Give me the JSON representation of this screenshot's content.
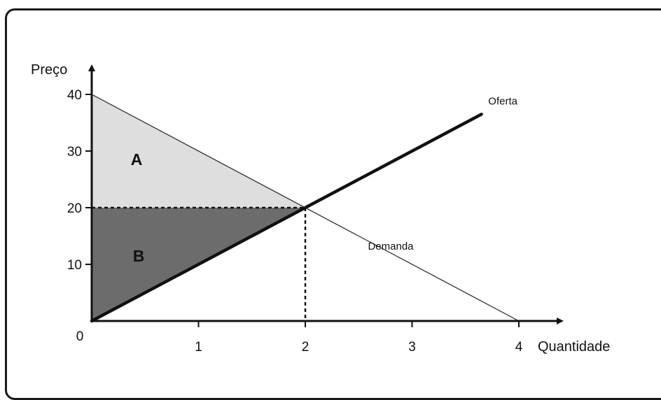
{
  "chart_data": {
    "type": "line",
    "xlabel": "Quantidade",
    "ylabel": "Preço",
    "xlim": [
      0,
      4.3
    ],
    "ylim": [
      0,
      44
    ],
    "x_ticks": [
      "0",
      "1",
      "2",
      "3",
      "4"
    ],
    "y_ticks": [
      "10",
      "20",
      "30",
      "40"
    ],
    "series": [
      {
        "name": "Oferta",
        "x": [
          0,
          3.65
        ],
        "y": [
          0,
          36.5
        ],
        "style": "thick",
        "color": "#111111"
      },
      {
        "name": "Demanda",
        "x": [
          0,
          4
        ],
        "y": [
          40,
          0
        ],
        "style": "thin",
        "color": "#222222"
      }
    ],
    "equilibrium": {
      "x": 2,
      "y": 20
    },
    "areas": [
      {
        "label": "A",
        "points": [
          [
            0,
            40
          ],
          [
            0,
            20
          ],
          [
            2,
            20
          ]
        ],
        "fill": "#dedede",
        "label_at": [
          0.42,
          28.5
        ],
        "label_color": "#111111"
      },
      {
        "label": "B",
        "points": [
          [
            0,
            20
          ],
          [
            0,
            0
          ],
          [
            2,
            20
          ]
        ],
        "fill": "#6c6c6c",
        "label_at": [
          0.44,
          11.5
        ],
        "label_color": "#ffffff"
      }
    ],
    "grid": false
  }
}
